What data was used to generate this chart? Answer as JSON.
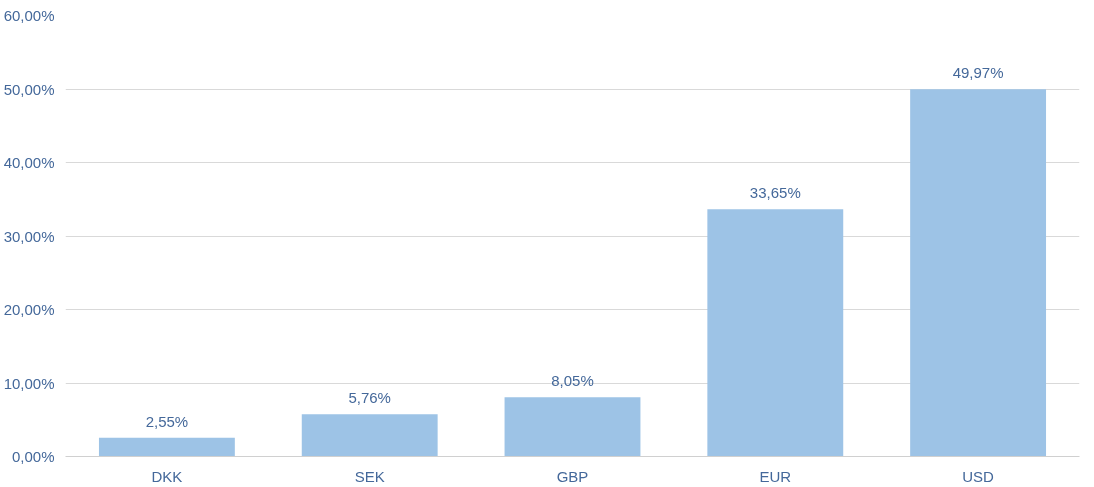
{
  "chart_data": {
    "type": "bar",
    "categories": [
      "DKK",
      "SEK",
      "GBP",
      "EUR",
      "USD"
    ],
    "values": [
      2.55,
      5.76,
      8.05,
      33.65,
      49.97
    ],
    "color": "#9dc3e6",
    "value_labels": [
      "2,55%",
      "5,76%",
      "8,05%",
      "33,65%",
      "49,97%"
    ],
    "ylim": [
      0,
      60
    ],
    "yticks": [
      {
        "value": 0,
        "label": "0,00%"
      },
      {
        "value": 10,
        "label": "10,00%"
      },
      {
        "value": 20,
        "label": "20,00%"
      },
      {
        "value": 30,
        "label": "30,00%"
      },
      {
        "value": 40,
        "label": "40,00%"
      },
      {
        "value": 50,
        "label": "50,00%"
      },
      {
        "value": 60,
        "label": "60,00%"
      }
    ],
    "grid": "y"
  }
}
